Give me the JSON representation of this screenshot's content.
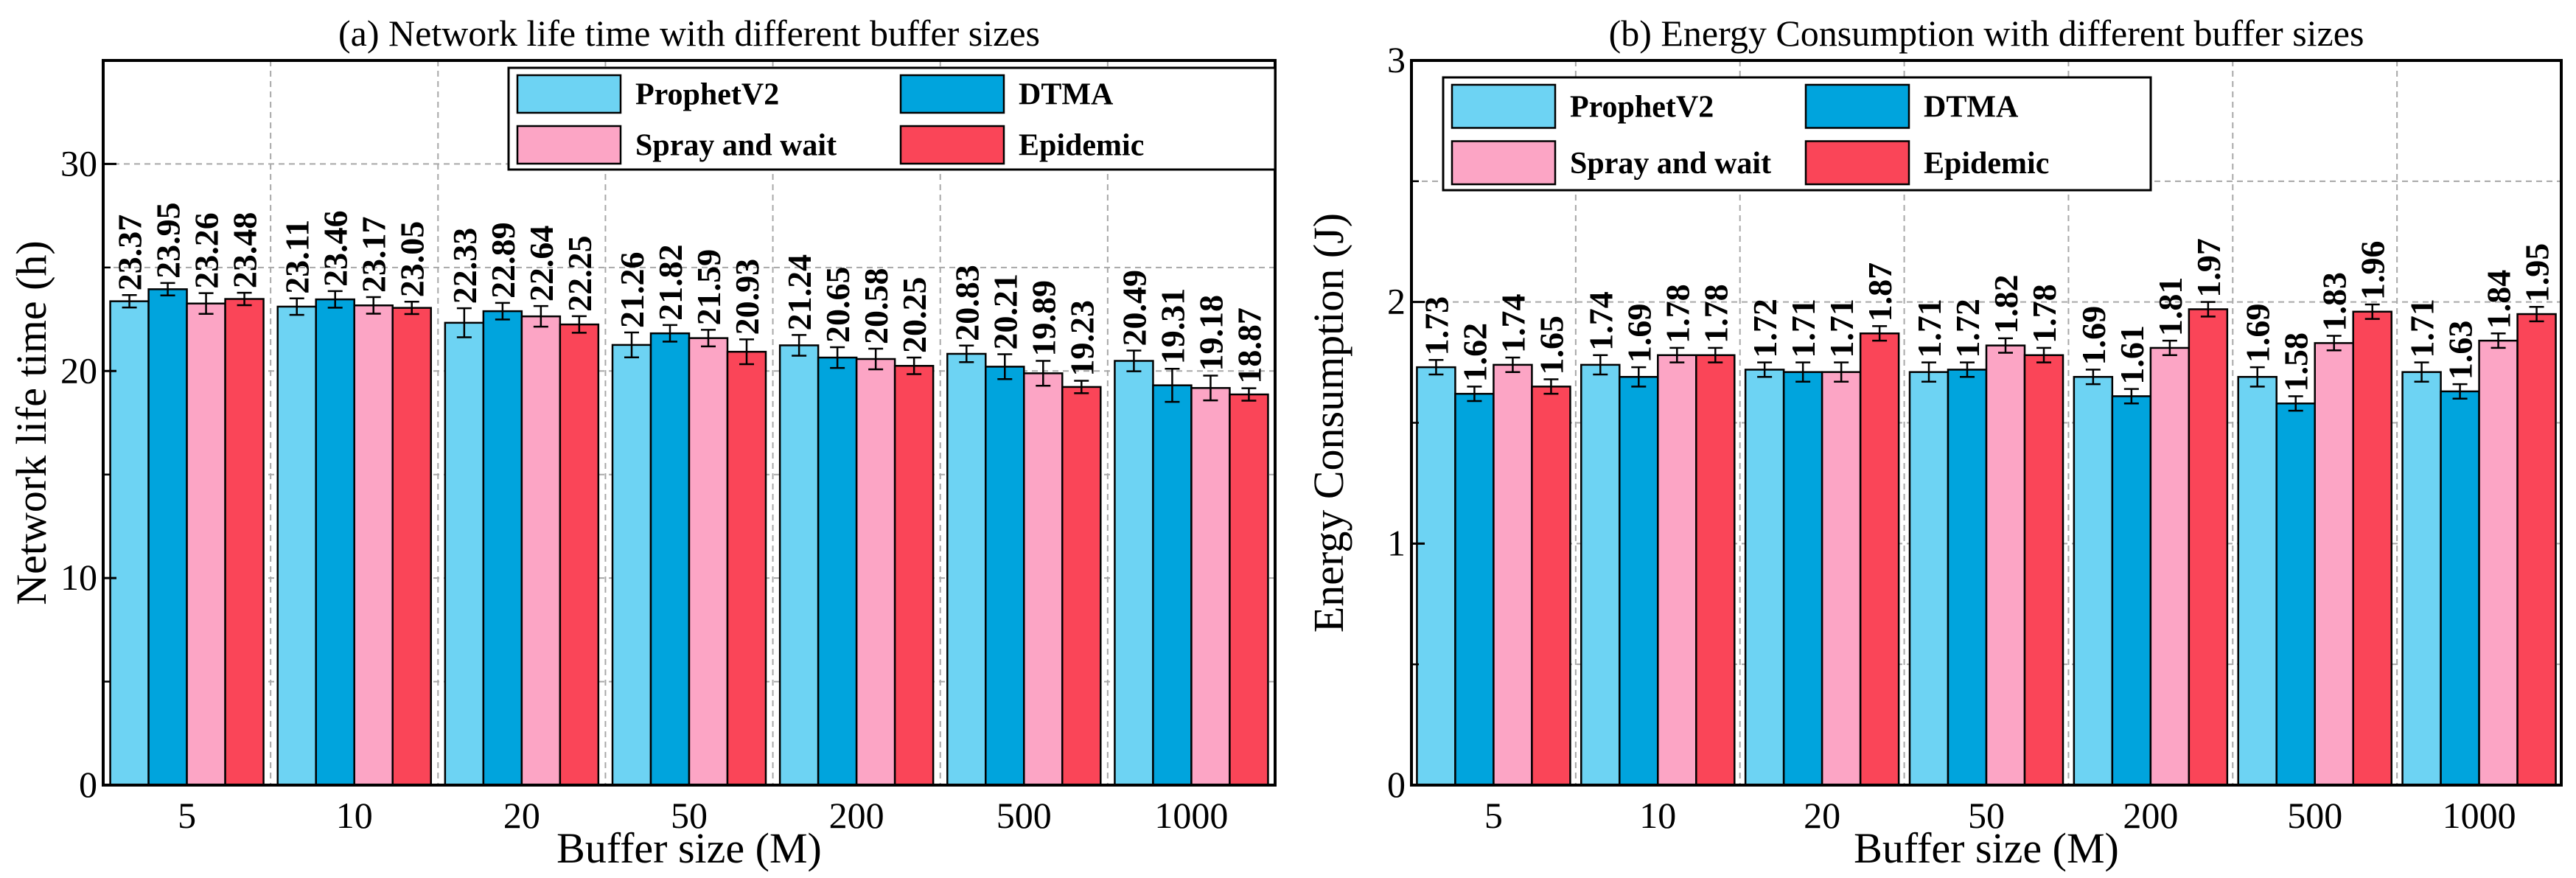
{
  "chart_data": [
    {
      "type": "bar",
      "title": "(a) Network life time with different buffer sizes",
      "xlabel": "Buffer size (M)",
      "ylabel": "Network life time (h)",
      "ylim": [
        0,
        35
      ],
      "yticks": [
        0,
        10,
        20,
        30
      ],
      "categories": [
        "5",
        "10",
        "20",
        "50",
        "200",
        "500",
        "1000"
      ],
      "series": [
        {
          "name": "ProphetV2",
          "values": [
            23.37,
            23.11,
            22.33,
            21.26,
            21.24,
            20.83,
            20.49
          ],
          "errors": [
            0.3,
            0.4,
            0.7,
            0.6,
            0.5,
            0.4,
            0.5
          ]
        },
        {
          "name": "DTMA",
          "values": [
            23.95,
            23.46,
            22.89,
            21.82,
            20.65,
            20.21,
            19.31
          ],
          "errors": [
            0.3,
            0.4,
            0.4,
            0.4,
            0.5,
            0.6,
            0.8
          ]
        },
        {
          "name": "Spray and wait",
          "values": [
            23.26,
            23.17,
            22.64,
            21.59,
            20.58,
            19.89,
            19.18
          ],
          "errors": [
            0.5,
            0.4,
            0.5,
            0.4,
            0.5,
            0.6,
            0.6
          ]
        },
        {
          "name": "Epidemic",
          "values": [
            23.48,
            23.05,
            22.25,
            20.93,
            20.25,
            19.23,
            18.87
          ],
          "errors": [
            0.3,
            0.3,
            0.4,
            0.6,
            0.4,
            0.3,
            0.3
          ]
        }
      ],
      "legend": "top-right",
      "grid": true
    },
    {
      "type": "bar",
      "title": "(b) Energy Consumption with different buffer sizes",
      "xlabel": "Buffer size (M)",
      "ylabel": "Energy Consumption (J)",
      "ylim": [
        0,
        3
      ],
      "yticks": [
        0,
        1,
        2,
        3
      ],
      "categories": [
        "5",
        "10",
        "20",
        "50",
        "200",
        "500",
        "1000"
      ],
      "series": [
        {
          "name": "ProphetV2",
          "values": [
            1.73,
            1.74,
            1.72,
            1.71,
            1.69,
            1.69,
            1.71
          ],
          "errors": [
            0.03,
            0.04,
            0.03,
            0.04,
            0.03,
            0.04,
            0.04
          ]
        },
        {
          "name": "DTMA",
          "values": [
            1.62,
            1.69,
            1.71,
            1.72,
            1.61,
            1.58,
            1.63
          ],
          "errors": [
            0.03,
            0.04,
            0.04,
            0.03,
            0.03,
            0.03,
            0.03
          ]
        },
        {
          "name": "Spray and wait",
          "values": [
            1.74,
            1.78,
            1.71,
            1.82,
            1.81,
            1.83,
            1.84
          ],
          "errors": [
            0.03,
            0.03,
            0.04,
            0.03,
            0.03,
            0.03,
            0.03
          ]
        },
        {
          "name": "Epidemic",
          "values": [
            1.65,
            1.78,
            1.87,
            1.78,
            1.97,
            1.96,
            1.95
          ],
          "errors": [
            0.03,
            0.03,
            0.03,
            0.03,
            0.03,
            0.03,
            0.03
          ]
        }
      ],
      "legend": "top-left",
      "grid": true
    }
  ],
  "colors": {
    "ProphetV2": "#6dd3f3",
    "DTMA": "#00a4dd",
    "Spray and wait": "#fca5c5",
    "Epidemic": "#fa4558"
  }
}
